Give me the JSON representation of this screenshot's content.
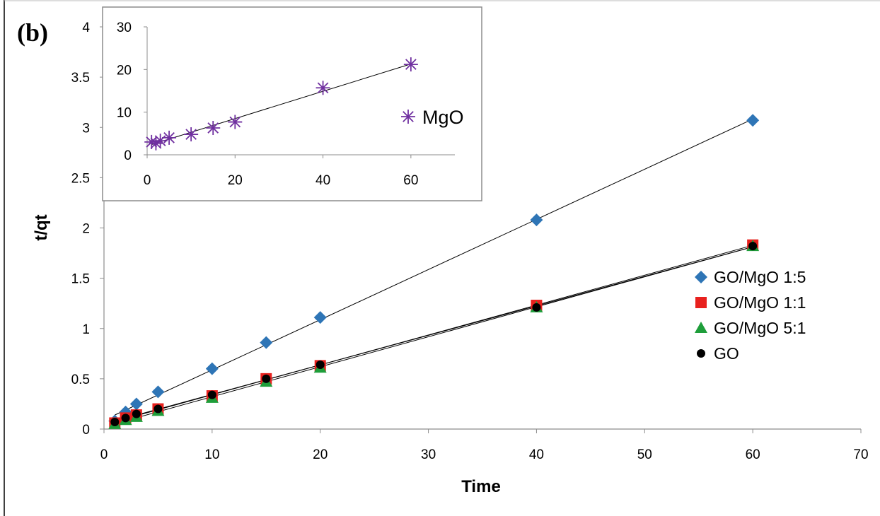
{
  "panel_label": "(b)",
  "chart_data": [
    {
      "type": "scatter",
      "xlabel": "Time",
      "ylabel": "t/qt",
      "xlim": [
        0,
        70
      ],
      "ylim": [
        0,
        4
      ],
      "xticks": [
        "0",
        "10",
        "20",
        "30",
        "40",
        "50",
        "60",
        "70"
      ],
      "yticks": [
        "0",
        "0.5",
        "1",
        "1.5",
        "2",
        "2.5",
        "3",
        "3.5",
        "4"
      ],
      "x": [
        1,
        2,
        3,
        5,
        10,
        15,
        20,
        40,
        60
      ],
      "grid": false,
      "legend_position": "right",
      "trendlines": "linear fit per series",
      "series": [
        {
          "name": "GO/MgO 1:5",
          "marker": "diamond",
          "color": "#2E75B6",
          "values": [
            0.08,
            0.17,
            0.25,
            0.37,
            0.6,
            0.86,
            1.11,
            2.08,
            3.07
          ]
        },
        {
          "name": "GO/MgO 1:1",
          "marker": "square",
          "color": "#E8211E",
          "values": [
            0.06,
            0.11,
            0.14,
            0.2,
            0.33,
            0.5,
            0.63,
            1.23,
            1.83
          ]
        },
        {
          "name": "GO/MgO 5:1",
          "marker": "triangle",
          "color": "#1E9E3A",
          "values": [
            0.05,
            0.09,
            0.12,
            0.18,
            0.31,
            0.47,
            0.61,
            1.21,
            1.82
          ]
        },
        {
          "name": "GO",
          "marker": "circle",
          "color": "#000000",
          "values": [
            0.07,
            0.11,
            0.15,
            0.2,
            0.34,
            0.5,
            0.64,
            1.21,
            1.82
          ]
        }
      ]
    },
    {
      "type": "scatter",
      "inset": true,
      "xlim": [
        0,
        70
      ],
      "ylim": [
        0,
        30
      ],
      "xticks": [
        "0",
        "20",
        "40",
        "60"
      ],
      "yticks": [
        "0",
        "10",
        "20",
        "30"
      ],
      "x": [
        1,
        2,
        3,
        5,
        10,
        15,
        20,
        40,
        60
      ],
      "grid": false,
      "legend_position": "right",
      "series": [
        {
          "name": "MgO",
          "marker": "asterisk",
          "color": "#7030A0",
          "values": [
            3.0,
            2.7,
            3.3,
            4.0,
            4.8,
            6.3,
            7.7,
            15.7,
            21.2
          ]
        }
      ]
    }
  ]
}
